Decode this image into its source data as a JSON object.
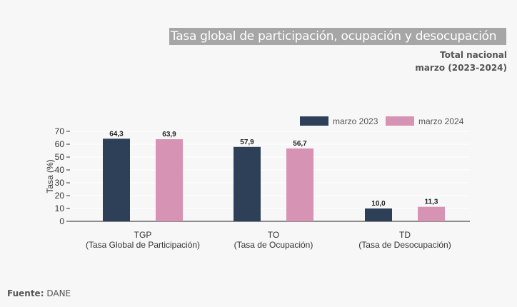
{
  "header": {
    "title": "Tasa global de participación, ocupación y desocupación",
    "subtitle1": "Total nacional",
    "subtitle2": "marzo (2023-2024)"
  },
  "source": {
    "label": "Fuente:",
    "value": "DANE"
  },
  "chart_data": {
    "type": "bar",
    "categories": [
      [
        "TGP",
        "(Tasa Global de Participación)"
      ],
      [
        "TO",
        "(Tasa de Ocupación)"
      ],
      [
        "TD",
        "(Tasa de Desocupación)"
      ]
    ],
    "series": [
      {
        "name": "marzo 2023",
        "values": [
          64.3,
          57.9,
          10.0
        ],
        "labels": [
          "64,3",
          "57,9",
          "10,0"
        ],
        "color": "#2e4058"
      },
      {
        "name": "marzo 2024",
        "values": [
          63.9,
          56.7,
          11.3
        ],
        "labels": [
          "63,9",
          "56,7",
          "11,3"
        ],
        "color": "#d693b3"
      }
    ],
    "ylabel": "Tasa (%)",
    "ylim": [
      0,
      70
    ],
    "yticks": [
      0,
      10,
      20,
      30,
      40,
      50,
      60,
      70
    ],
    "grid": true,
    "legend": "top-right"
  }
}
